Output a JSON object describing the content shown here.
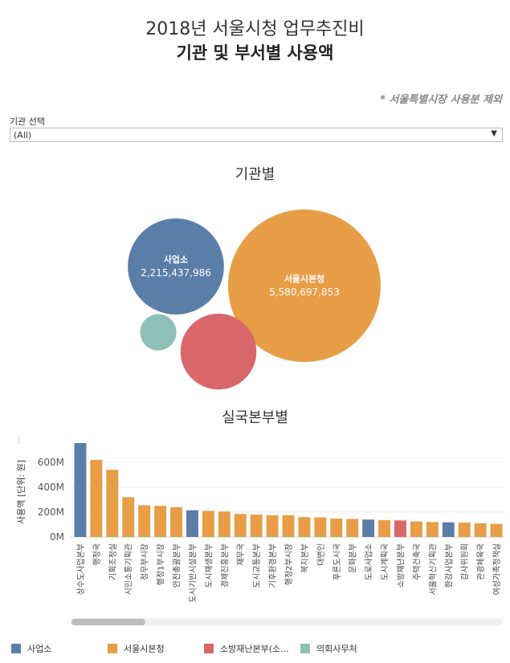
{
  "header": {
    "title_line1": "2018년 서울시청 업무추진비",
    "title_line2": "기관 및 부서별 사용액",
    "note": "* 서울특별시장 사용분 제외"
  },
  "filter": {
    "label": "기관 선택",
    "value": "(All)"
  },
  "colors": {
    "사업소": "#5b7ea9",
    "서울시본청": "#e89d47",
    "소방재난본부": "#d9676a",
    "의회사무처": "#8ebfb9"
  },
  "legend": [
    {
      "name": "사업소",
      "label": "사업소"
    },
    {
      "name": "서울시본청",
      "label": "서울시본청"
    },
    {
      "name": "소방재난본부",
      "label": "소방재난본부(소..."
    },
    {
      "name": "의회사무처",
      "label": "의회사무처"
    }
  ],
  "chart_data": [
    {
      "type": "bubble",
      "title": "기관별",
      "bubbles": [
        {
          "name": "사업소",
          "value": 2215437986,
          "label": "사업소",
          "value_label": "2,215,437,986"
        },
        {
          "name": "서울시본청",
          "value": 5580697853,
          "label": "서울시본청",
          "value_label": "5,580,697,853"
        },
        {
          "name": "소방재난본부",
          "value": 1380000000,
          "label": "",
          "value_label": ""
        },
        {
          "name": "의회사무처",
          "value": 315000000,
          "label": "",
          "value_label": ""
        }
      ]
    },
    {
      "type": "bar",
      "title": "실국본부별",
      "ylabel": "사용액 [단위: 원]",
      "ylim": [
        0,
        800000000
      ],
      "yticks": [
        {
          "value": 0,
          "label": "0M"
        },
        {
          "value": 200000000,
          "label": "200M"
        },
        {
          "value": 400000000,
          "label": "400M"
        },
        {
          "value": 600000000,
          "label": "600M"
        }
      ],
      "categories": [
        "상수도사업본부",
        "행정국",
        "기획조정실",
        "시민소통기획관",
        "정무부시장",
        "행정1부시장",
        "안전총괄본부",
        "도시기반시설본부",
        "도시재생본부",
        "경제진흥본부",
        "재무국",
        "도시교통본부",
        "기후환경본부",
        "행정2부시장",
        "복지본부",
        "대변인",
        "푸른도시국",
        "문화본부",
        "도로사업소",
        "도시계획국",
        "소방재난본부",
        "주택건축국",
        "서울혁신기획관",
        "한강사업본부",
        "감사위원회",
        "관광체육국",
        "여성가족정책실"
      ],
      "groups": [
        "사업소",
        "서울시본청",
        "서울시본청",
        "서울시본청",
        "서울시본청",
        "서울시본청",
        "서울시본청",
        "사업소",
        "서울시본청",
        "서울시본청",
        "서울시본청",
        "서울시본청",
        "서울시본청",
        "서울시본청",
        "서울시본청",
        "서울시본청",
        "서울시본청",
        "서울시본청",
        "사업소",
        "서울시본청",
        "소방재난본부",
        "서울시본청",
        "서울시본청",
        "사업소",
        "서울시본청",
        "서울시본청",
        "서울시본청"
      ],
      "values": [
        755000000,
        620000000,
        540000000,
        320000000,
        255000000,
        250000000,
        240000000,
        215000000,
        210000000,
        205000000,
        185000000,
        180000000,
        175000000,
        175000000,
        160000000,
        158000000,
        148000000,
        145000000,
        140000000,
        135000000,
        133000000,
        125000000,
        120000000,
        118000000,
        115000000,
        110000000,
        105000000
      ]
    }
  ]
}
